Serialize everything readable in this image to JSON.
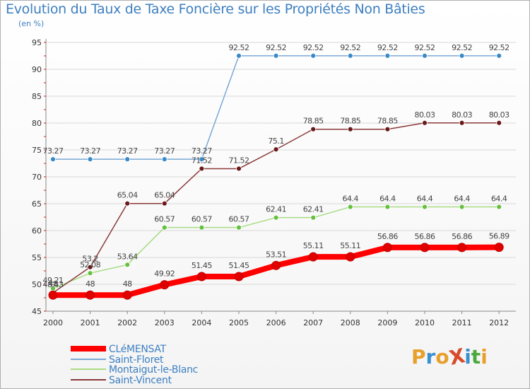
{
  "title": "Evolution du Taux de Taxe Foncière sur les Propriétés Non Bâties",
  "unit": "(en %)",
  "logo": {
    "text": "ProXiti",
    "letters": [
      "P",
      "r",
      "o",
      "X",
      "i",
      "t",
      "i"
    ],
    "colors": [
      "#e8a02c",
      "#3b8fd0",
      "#e8a02c",
      "#d84a2a",
      "#3b8fd0",
      "#4aa83c",
      "#e8a02c"
    ]
  },
  "chart_data": {
    "type": "line",
    "x": [
      "2000",
      "2001",
      "2002",
      "2003",
      "2004",
      "2005",
      "2006",
      "2007",
      "2008",
      "2009",
      "2010",
      "2011",
      "2012"
    ],
    "ylim": [
      45,
      95
    ],
    "yticks": [
      45,
      50,
      55,
      60,
      65,
      70,
      75,
      80,
      85,
      90,
      95
    ],
    "grid": "horizontal",
    "series": [
      {
        "name": "CLéMENSAT",
        "color": "#ff0000",
        "dot": "#e00000",
        "width": 8,
        "r": 6,
        "values": [
          48,
          48,
          48,
          49.92,
          51.45,
          51.45,
          53.51,
          55.11,
          55.11,
          56.86,
          56.86,
          56.86,
          56.89
        ],
        "labels": [
          "48",
          "48",
          "48",
          "49.92",
          "51.45",
          "51.45",
          "53.51",
          "55.11",
          "55.11",
          "56.86",
          "56.86",
          "56.86",
          "56.89"
        ]
      },
      {
        "name": "Saint-Floret",
        "color": "#7aa8d6",
        "dot": "#3a8ac8",
        "width": 1.5,
        "r": 3.5,
        "values": [
          73.27,
          73.27,
          73.27,
          73.27,
          73.27,
          92.52,
          92.52,
          92.52,
          92.52,
          92.52,
          92.52,
          92.52,
          92.52
        ],
        "labels": [
          "73.27",
          "73.27",
          "73.27",
          "73.27",
          "73.27",
          "92.52",
          "92.52",
          "92.52",
          "92.52",
          "92.52",
          "92.52",
          "92.52",
          "92.52"
        ]
      },
      {
        "name": "Montaigut-le-Blanc",
        "color": "#a8dc84",
        "dot": "#66c040",
        "width": 1.5,
        "r": 3.5,
        "values": [
          49.21,
          52.08,
          53.64,
          60.57,
          60.57,
          60.57,
          62.41,
          62.41,
          64.4,
          64.4,
          64.4,
          64.4,
          64.4
        ],
        "labels": [
          "49.21",
          "52.08",
          "53.64",
          "60.57",
          "60.57",
          "60.57",
          "62.41",
          "62.41",
          "64.4",
          "64.4",
          "64.4",
          "64.4",
          "64.4"
        ]
      },
      {
        "name": "Saint-Vincent",
        "color": "#8b3a3a",
        "dot": "#6a1a1a",
        "width": 1.5,
        "r": 3.5,
        "values": [
          48.43,
          53.2,
          65.04,
          65.04,
          71.52,
          71.52,
          75.1,
          78.85,
          78.85,
          78.85,
          80.03,
          80.03,
          80.03
        ],
        "labels": [
          "48.43",
          "53.2",
          "65.04",
          "65.04",
          "71.52",
          "71.52",
          "75.1",
          "78.85",
          "78.85",
          "78.85",
          "80.03",
          "80.03",
          "80.03"
        ]
      }
    ]
  }
}
